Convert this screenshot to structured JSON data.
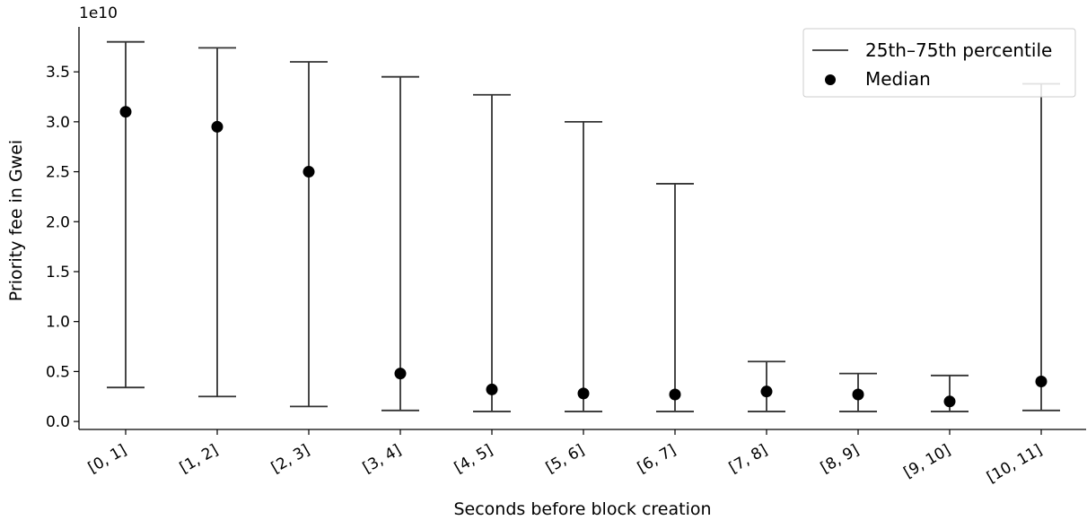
{
  "chart_data": {
    "type": "scatter",
    "xlabel": "Seconds before block creation",
    "ylabel": "Priority fee in Gwei",
    "y_offset_label": "1e10",
    "categories": [
      "[0, 1]",
      "[1, 2]",
      "[2, 3]",
      "[3, 4]",
      "[4, 5]",
      "[5, 6]",
      "[6, 7]",
      "[7, 8]",
      "[8, 9]",
      "[9, 10]",
      "[10, 11]"
    ],
    "yticks": [
      0.0,
      0.5,
      1.0,
      1.5,
      2.0,
      2.5,
      3.0,
      3.5
    ],
    "ytick_labels": [
      "0.0",
      "0.5",
      "1.0",
      "1.5",
      "2.0",
      "2.5",
      "3.0",
      "3.5"
    ],
    "ylim": [
      -0.08,
      3.95
    ],
    "y_scale_note": "values shown in units of 1e10",
    "series": [
      {
        "name": "25th–75th percentile",
        "kind": "range",
        "color": "#333333",
        "low": [
          0.34,
          0.25,
          0.15,
          0.11,
          0.1,
          0.1,
          0.1,
          0.1,
          0.1,
          0.1,
          0.11
        ],
        "high": [
          3.8,
          3.74,
          3.6,
          3.45,
          3.27,
          3.0,
          2.38,
          0.6,
          0.48,
          0.46,
          3.38
        ]
      },
      {
        "name": "Median",
        "kind": "point",
        "color": "#000000",
        "values": [
          3.1,
          2.95,
          2.5,
          0.48,
          0.32,
          0.28,
          0.27,
          0.3,
          0.27,
          0.2,
          0.4
        ]
      }
    ],
    "legend": {
      "placement": "top-right",
      "entries": [
        "25th–75th percentile",
        "Median"
      ]
    },
    "grid": false
  }
}
